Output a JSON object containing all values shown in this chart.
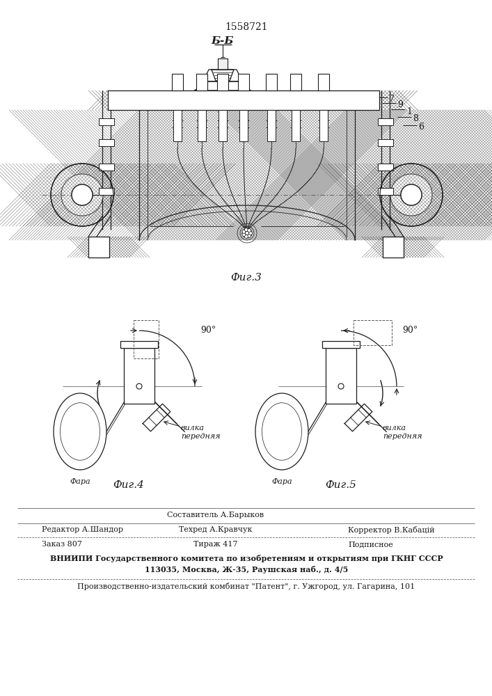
{
  "patent_number": "1558721",
  "fig3_label": "Б-Б",
  "fig3_caption": "Фиг.3",
  "fig4_caption": "Фиг.4",
  "fig5_caption": "Фиг.5",
  "label_fara": "Фара",
  "label_vilka": "вилка\nпередняя",
  "label_90": "90°",
  "footer_line1_center": "Составитель А.Барыков",
  "footer_line1_left": "Редактор А.Шандор",
  "footer_line1_center2": "Техред А.Кравчук",
  "footer_line1_right": "Корректор В.Кабацій",
  "footer_line2_left": "Заказ 807",
  "footer_line2_center": "Тираж 417",
  "footer_line2_right": "Подписное",
  "footer_line3": "ВНИИПИ Государственного комитета по изобретениям и открытиям при ГКНГ СССР",
  "footer_line4": "113035, Москва, Ж-35, Раушская наб., д. 4/5",
  "footer_line5": "Производственно-издательский комбинат \"Патент\", г. Ужгород, ул. Гагарина, 101",
  "lc": "#1a1a1a",
  "lw": 0.9
}
